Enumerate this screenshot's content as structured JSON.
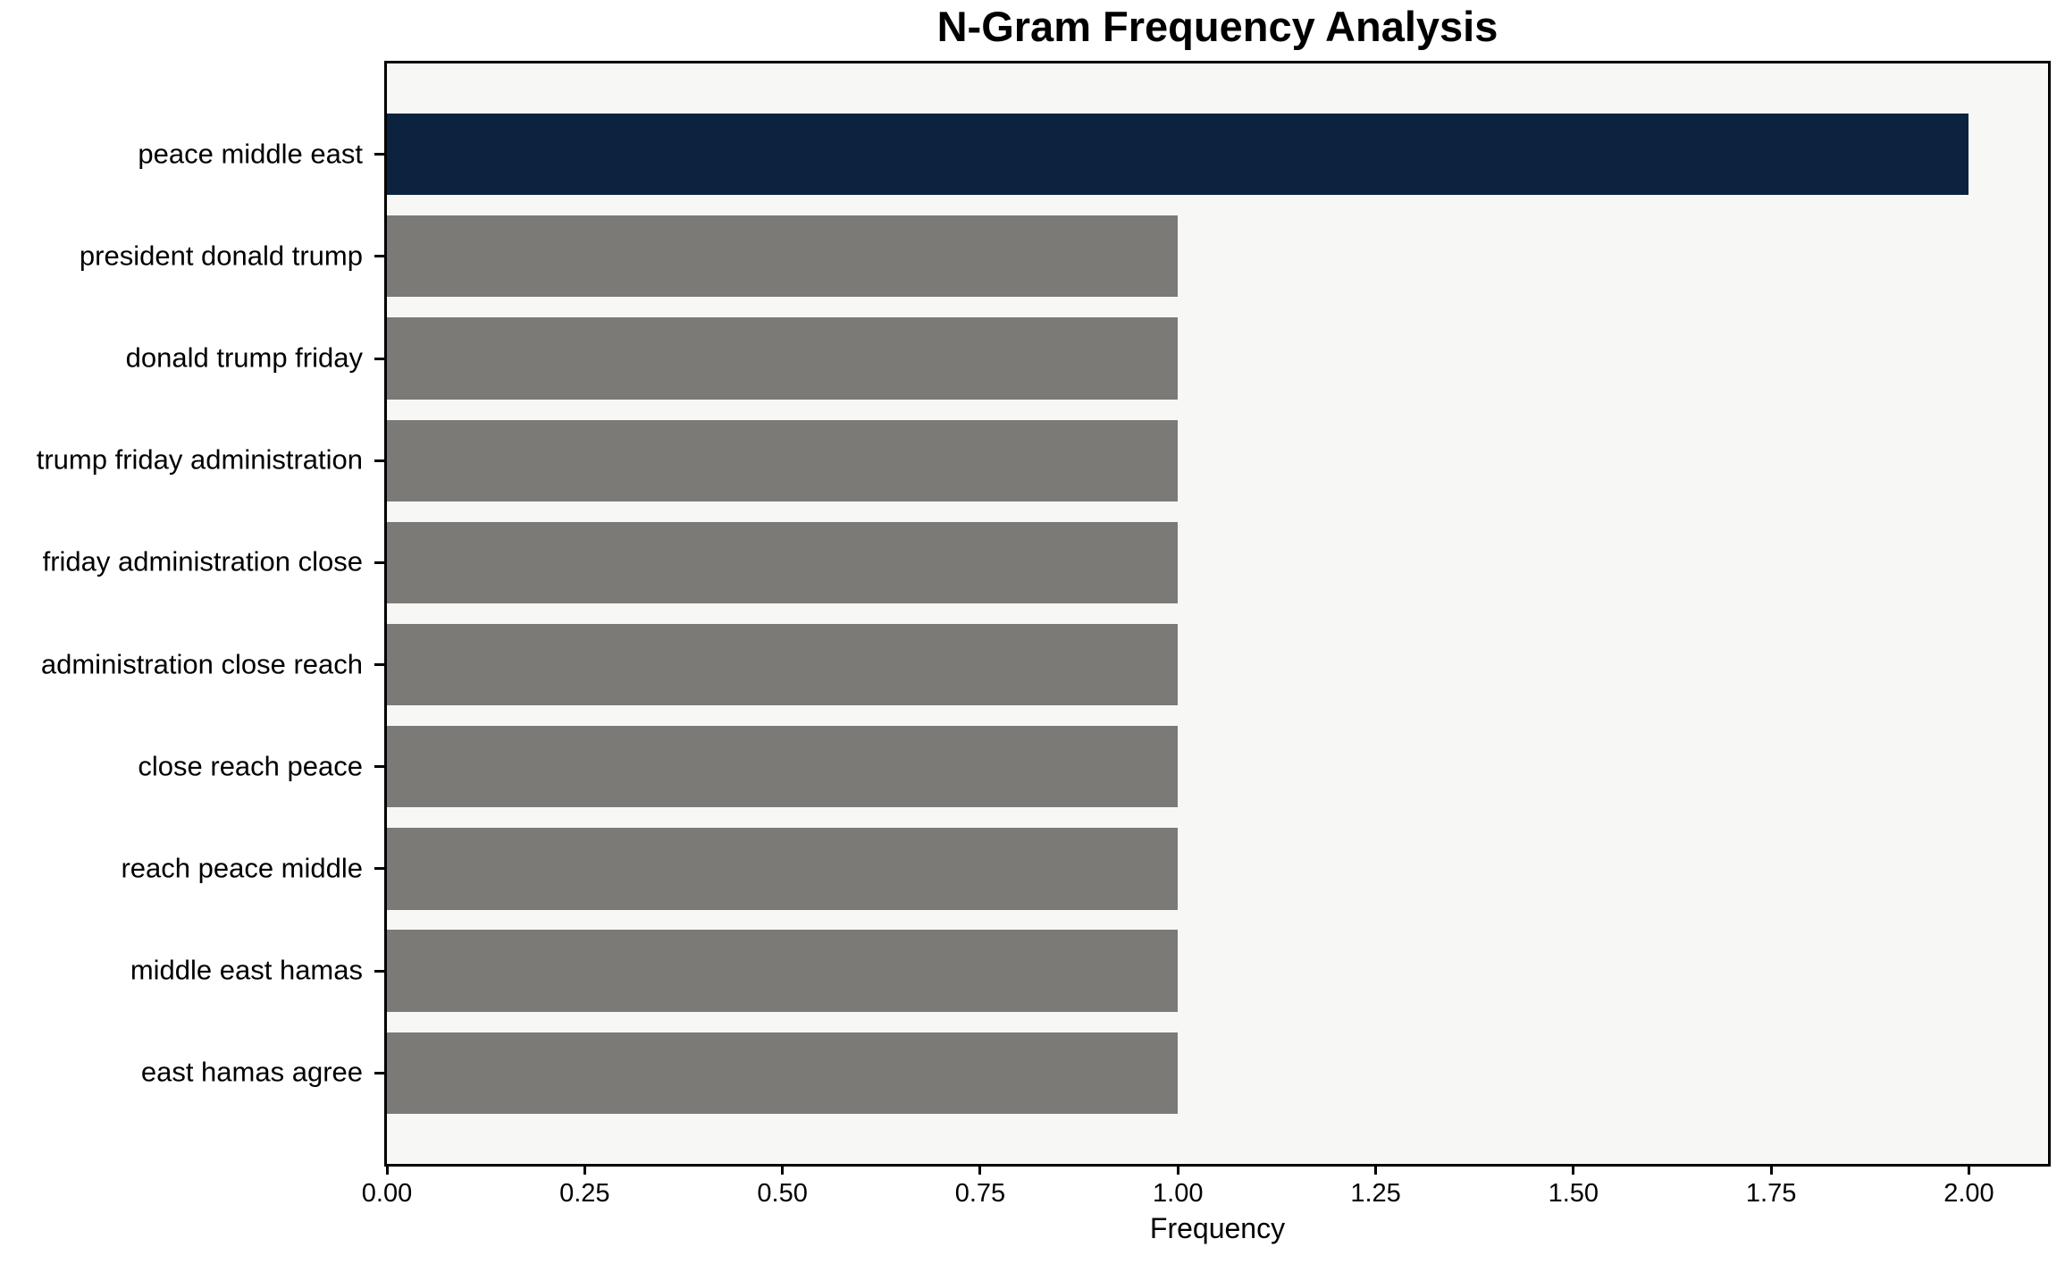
{
  "chart_data": {
    "type": "bar",
    "orientation": "horizontal",
    "title": "N-Gram Frequency Analysis",
    "xlabel": "Frequency",
    "ylabel": "",
    "categories": [
      "peace middle east",
      "president donald trump",
      "donald trump friday",
      "trump friday administration",
      "friday administration close",
      "administration close reach",
      "close reach peace",
      "reach peace middle",
      "middle east hamas",
      "east hamas agree"
    ],
    "values": [
      2,
      1,
      1,
      1,
      1,
      1,
      1,
      1,
      1,
      1
    ],
    "highlight_index": 0,
    "xlim": [
      0,
      2.1
    ],
    "x_ticks": [
      {
        "value": 0.0,
        "label": "0.00"
      },
      {
        "value": 0.25,
        "label": "0.25"
      },
      {
        "value": 0.5,
        "label": "0.50"
      },
      {
        "value": 0.75,
        "label": "0.75"
      },
      {
        "value": 1.0,
        "label": "1.00"
      },
      {
        "value": 1.25,
        "label": "1.25"
      },
      {
        "value": 1.5,
        "label": "1.50"
      },
      {
        "value": 1.75,
        "label": "1.75"
      },
      {
        "value": 2.0,
        "label": "2.00"
      }
    ],
    "grid": false,
    "legend": null,
    "colors": {
      "highlight_bar": "#0c2340",
      "default_bar": "#7b7a77",
      "plot_background": "#f7f7f6",
      "figure_background": "#ffffff",
      "axis": "#000000",
      "text": "#000000"
    }
  }
}
